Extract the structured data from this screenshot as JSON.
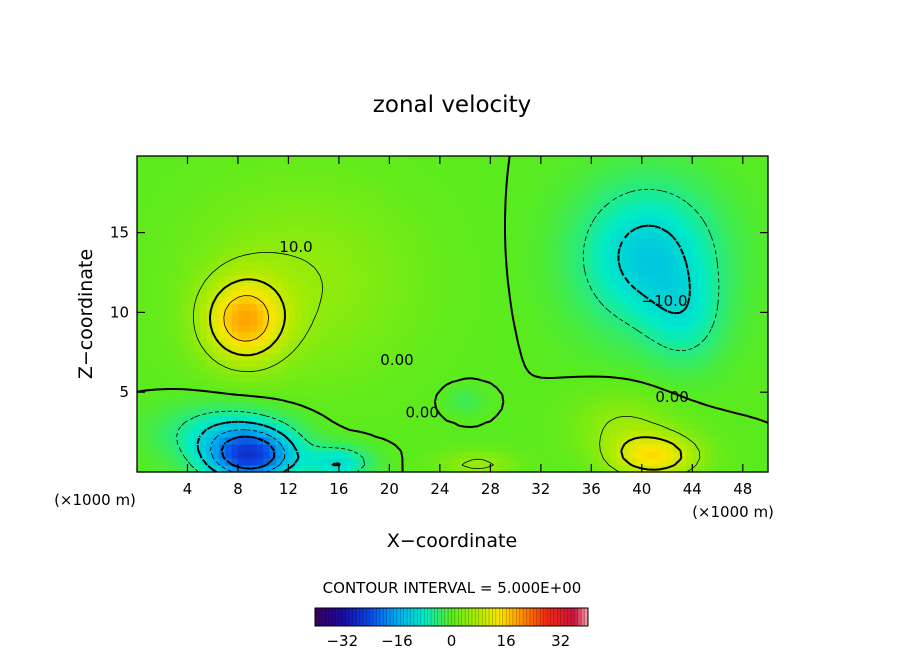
{
  "chart_data": {
    "type": "heatmap",
    "title": "zonal velocity",
    "xlabel": "X−coordinate",
    "ylabel": "Z−coordinate",
    "x_unit_left": "(×1000 m)",
    "x_unit_right": "(×1000 m)",
    "xlim": [
      0,
      50
    ],
    "ylim": [
      0,
      19.8
    ],
    "xticks": [
      4,
      8,
      12,
      16,
      20,
      24,
      28,
      32,
      36,
      40,
      44,
      48
    ],
    "yticks": [
      5,
      10,
      15
    ],
    "contour_interval_text": "CONTOUR INTERVAL = 5.000E+00",
    "contour_labels": [
      {
        "text": "10.0",
        "x": 12.6,
        "y": 13.8
      },
      {
        "text": "0.00",
        "x": 20.6,
        "y": 6.7
      },
      {
        "text": "0.00",
        "x": 22.6,
        "y": 3.4
      },
      {
        "text": "−10.0",
        "x": 41.8,
        "y": 10.4
      },
      {
        "text": "0.00",
        "x": 42.4,
        "y": 4.4
      }
    ],
    "colorbar": {
      "range": [
        -40,
        40
      ],
      "ticks": [
        -32,
        -16,
        0,
        16,
        32
      ],
      "tick_labels": [
        "−32",
        "−16",
        "0",
        "16",
        "32"
      ]
    },
    "features": [
      {
        "x": 8.5,
        "z": 9.5,
        "value": 16,
        "sx": 3.2,
        "sz": 2.6
      },
      {
        "x": 13,
        "z": 12,
        "value": 5,
        "sx": 9,
        "sz": 6
      },
      {
        "x": 9,
        "z": 1.0,
        "value": -24,
        "sx": 3.5,
        "sz": 1.6
      },
      {
        "x": 16,
        "z": 0.6,
        "value": -10,
        "sx": 2.5,
        "sz": 1.0
      },
      {
        "x": 7,
        "z": 2.5,
        "value": -8,
        "sx": 5,
        "sz": 1.8
      },
      {
        "x": 40.5,
        "z": 13.5,
        "value": -12,
        "sx": 5.5,
        "sz": 4.5
      },
      {
        "x": 43.5,
        "z": 9.5,
        "value": -5,
        "sx": 3,
        "sz": 3
      },
      {
        "x": 41,
        "z": 1.0,
        "value": 14,
        "sx": 3.5,
        "sz": 1.4
      },
      {
        "x": 38.5,
        "z": 3.0,
        "value": 5,
        "sx": 4,
        "sz": 2
      },
      {
        "x": 26,
        "z": 4.5,
        "value": -3,
        "sx": 1.5,
        "sz": 0.8
      },
      {
        "x": 27,
        "z": 0.5,
        "value": 6,
        "sx": 3,
        "sz": 0.8
      }
    ],
    "base_value": 0
  }
}
